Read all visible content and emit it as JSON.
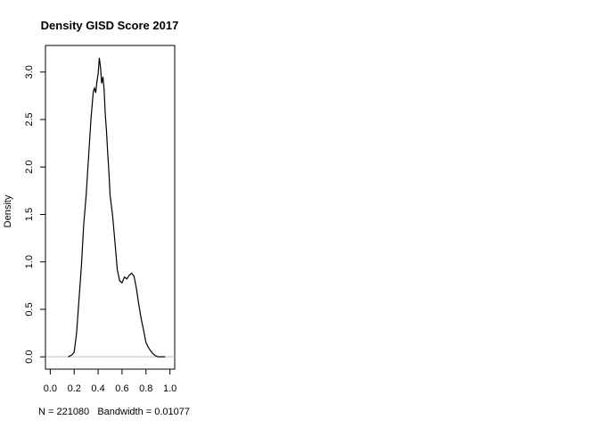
{
  "chart_data": {
    "type": "line",
    "title": "Density GISD Score 2017",
    "ylabel": "Density",
    "xlabel": "N = 221080   Bandwidth = 0.01077",
    "xlim": [
      -0.04,
      1.04
    ],
    "ylim": [
      -0.13,
      3.28
    ],
    "x_ticks": [
      0.0,
      0.2,
      0.4,
      0.6,
      0.8,
      1.0
    ],
    "x_tick_labels": [
      "0.0",
      "0.2",
      "0.4",
      "0.6",
      "0.8",
      "1.0"
    ],
    "y_ticks": [
      0.0,
      0.5,
      1.0,
      1.5,
      2.0,
      2.5,
      3.0
    ],
    "y_tick_labels": [
      "0.0",
      "0.5",
      "1.0",
      "1.5",
      "2.0",
      "2.5",
      "3.0"
    ],
    "baseline": 0,
    "series": [
      {
        "x": [
          0.15,
          0.18,
          0.2,
          0.22,
          0.24,
          0.26,
          0.28,
          0.3,
          0.32,
          0.34,
          0.36,
          0.37,
          0.38,
          0.39,
          0.4,
          0.41,
          0.42,
          0.43,
          0.44,
          0.45,
          0.46,
          0.47,
          0.48,
          0.49,
          0.5,
          0.52,
          0.54,
          0.56,
          0.58,
          0.6,
          0.62,
          0.64,
          0.66,
          0.68,
          0.7,
          0.72,
          0.74,
          0.76,
          0.78,
          0.8,
          0.82,
          0.84,
          0.86,
          0.88,
          0.9,
          0.92,
          0.94,
          0.96
        ],
        "y": [
          0.0,
          0.02,
          0.05,
          0.25,
          0.6,
          0.95,
          1.4,
          1.7,
          2.1,
          2.5,
          2.8,
          2.83,
          2.78,
          2.9,
          2.98,
          3.15,
          3.05,
          2.88,
          2.95,
          2.82,
          2.55,
          2.38,
          2.15,
          1.95,
          1.7,
          1.5,
          1.22,
          0.92,
          0.8,
          0.78,
          0.84,
          0.82,
          0.86,
          0.88,
          0.85,
          0.72,
          0.55,
          0.4,
          0.28,
          0.15,
          0.1,
          0.06,
          0.03,
          0.01,
          0.0,
          0.0,
          0.0,
          0.0
        ]
      }
    ]
  }
}
